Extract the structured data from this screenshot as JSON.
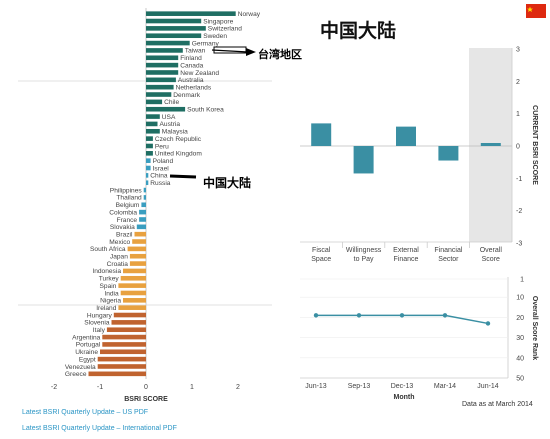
{
  "header": {
    "title": "中国大陆",
    "flag_icon": "china-flag-icon",
    "flag_color": "#de2910"
  },
  "callouts": {
    "taiwan": "台湾地区",
    "china": "中国大陆"
  },
  "footer": {
    "note": "Data as at March 2014",
    "link_us": "Latest BSRI Quarterly Update – US PDF",
    "link_intl": "Latest BSRI Quarterly Update – International PDF"
  },
  "colors": {
    "high": "#1f6e63",
    "mid": "#3a9ec0",
    "low": "#e8a13f",
    "worst": "#c0632f",
    "bar": "#3a8fa3",
    "line": "#3a8fa3"
  },
  "chart_data": [
    {
      "type": "bar",
      "orientation": "horizontal",
      "xlabel": "BSRI SCORE",
      "xlim": [
        -2,
        2
      ],
      "xticks": [
        "-2",
        "-1",
        "0",
        "1",
        "2"
      ],
      "categories": [
        "Norway",
        "Singapore",
        "Switzerland",
        "Sweden",
        "Germany",
        "Taiwan",
        "Finland",
        "Canada",
        "New Zealand",
        "Australia",
        "Netherlands",
        "Denmark",
        "Chile",
        "South Korea",
        "USA",
        "Austria",
        "Malaysia",
        "Czech Republic",
        "Peru",
        "United Kingdom",
        "Poland",
        "Israel",
        "China",
        "Russia",
        "Philippines",
        "Thailand",
        "Belgium",
        "Colombia",
        "France",
        "Slovakia",
        "Brazil",
        "Mexico",
        "South Africa",
        "Japan",
        "Croatia",
        "Indonesia",
        "Turkey",
        "Spain",
        "India",
        "Nigeria",
        "Ireland",
        "Hungary",
        "Slovenia",
        "Italy",
        "Argentina",
        "Portugal",
        "Ukraine",
        "Egypt",
        "Venezuela",
        "Greece"
      ],
      "values": [
        1.95,
        1.2,
        1.3,
        1.2,
        0.95,
        0.8,
        0.7,
        0.7,
        0.7,
        0.65,
        0.6,
        0.55,
        0.35,
        0.85,
        0.3,
        0.25,
        0.3,
        0.15,
        0.15,
        0.15,
        0.1,
        0.1,
        0.05,
        0.05,
        -0.05,
        -0.05,
        -0.1,
        -0.15,
        -0.15,
        -0.2,
        -0.25,
        -0.3,
        -0.4,
        -0.35,
        -0.35,
        -0.5,
        -0.55,
        -0.6,
        -0.55,
        -0.5,
        -0.6,
        -0.7,
        -0.75,
        -0.85,
        -0.95,
        -0.95,
        -1.0,
        -1.05,
        -1.05,
        -1.25
      ],
      "groups": [
        {
          "color": "high",
          "count": 20
        },
        {
          "color": "mid",
          "count": 10
        },
        {
          "color": "low",
          "count": 11
        },
        {
          "color": "worst",
          "count": 9
        }
      ]
    },
    {
      "type": "bar",
      "ylabel": "CURRENT BSRI SCORE",
      "ylim": [
        -3,
        3
      ],
      "yticks": [
        "3",
        "2",
        "1",
        "0",
        "-1",
        "-2",
        "-3"
      ],
      "categories": [
        "Fiscal Space",
        "Willingness to Pay",
        "External Finance",
        "Financial Sector",
        "Overall Score"
      ],
      "values": [
        0.7,
        -0.85,
        0.6,
        -0.45,
        0.05
      ],
      "highlighted_category": "Overall Score"
    },
    {
      "type": "line",
      "xlabel": "Month",
      "ylabel": "Overall Score Rank",
      "x": [
        "Jun-13",
        "Sep-13",
        "Dec-13",
        "Mar-14",
        "Jun-14"
      ],
      "y": [
        19,
        19,
        19,
        19,
        23
      ],
      "ylim": [
        1,
        50
      ],
      "yticks": [
        "1",
        "10",
        "20",
        "30",
        "40",
        "50"
      ],
      "reversed_axis": true
    }
  ]
}
